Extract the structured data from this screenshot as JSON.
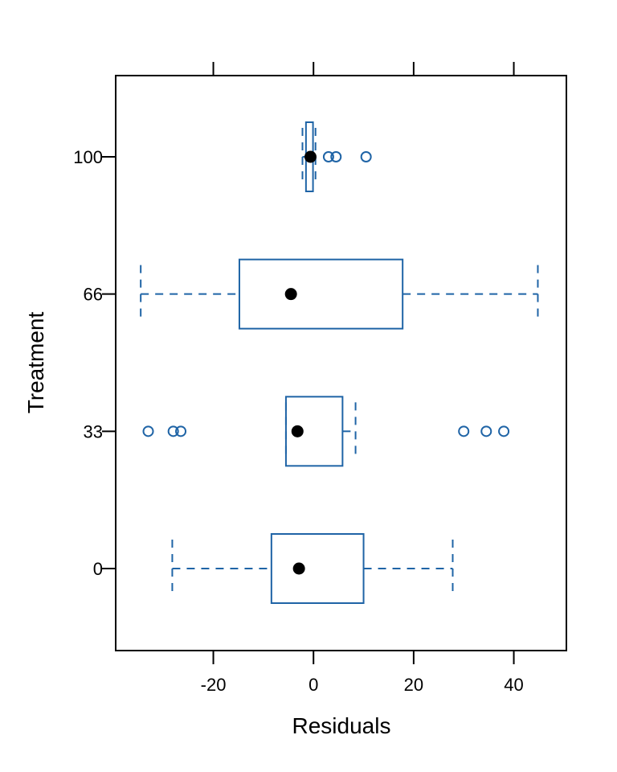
{
  "chart_data": {
    "type": "boxplot",
    "orientation": "horizontal",
    "xlabel": "Residuals",
    "ylabel": "Treatment",
    "xlim": [
      -39.5,
      50.5
    ],
    "x_ticks": [
      -20,
      0,
      20,
      40
    ],
    "x_tick_labels": [
      "-20",
      "0",
      "20",
      "40"
    ],
    "grid": false,
    "colors": {
      "box": "#1f64a6",
      "median": "#000000",
      "frame": "#000000"
    },
    "categories": [
      "0",
      "33",
      "66",
      "100"
    ],
    "boxes": [
      {
        "label": "0",
        "whisker_low": -28.2,
        "q1": -8.4,
        "median": -2.9,
        "q3": 10.0,
        "whisker_high": 27.8,
        "outliers": []
      },
      {
        "label": "33",
        "whisker_low": -5.5,
        "q1": -5.5,
        "median": -3.2,
        "q3": 5.8,
        "whisker_high": 8.4,
        "outliers": [
          -33.0,
          -28.0,
          -26.5,
          30.0,
          34.5,
          38.0
        ]
      },
      {
        "label": "66",
        "whisker_low": -34.5,
        "q1": -14.8,
        "median": -4.5,
        "q3": 17.8,
        "whisker_high": 44.8,
        "outliers": []
      },
      {
        "label": "100",
        "whisker_low": -2.2,
        "q1": -1.5,
        "median": -0.6,
        "q3": -0.1,
        "whisker_high": 0.4,
        "outliers": [
          3.0,
          4.5,
          10.5
        ]
      }
    ]
  }
}
